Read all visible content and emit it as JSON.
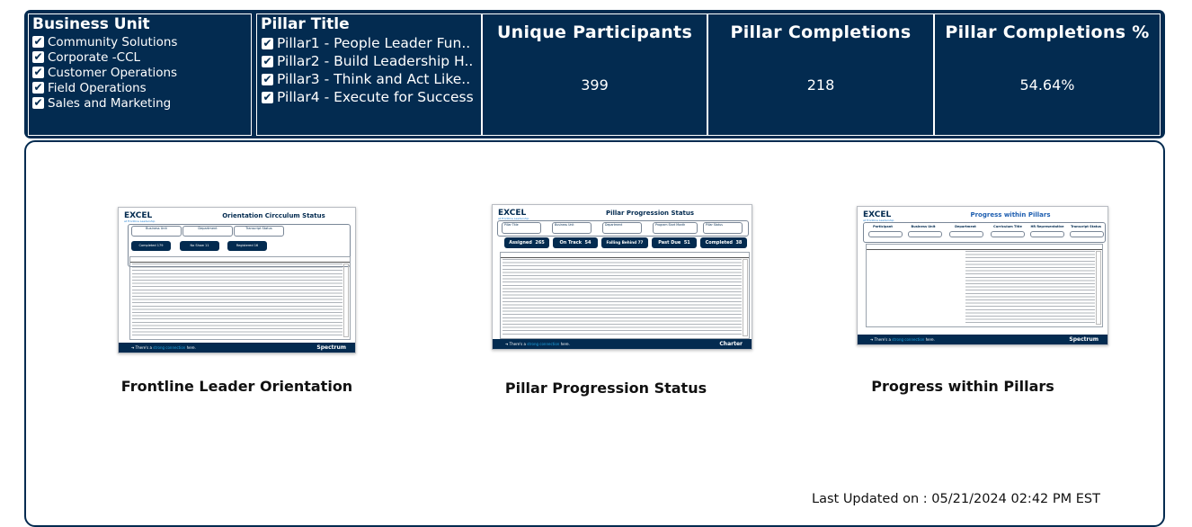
{
  "slicers": {
    "business_unit": {
      "title": "Business Unit",
      "items": [
        "Community Solutions",
        "Corporate -CCL",
        "Customer Operations",
        "Field Operations",
        "Sales and Marketing"
      ]
    },
    "pillar_title": {
      "title": "Pillar Title",
      "items": [
        "Pillar1 - People Leader Fun..",
        "Pillar2 - Build Leadership H..",
        "Pillar3 - Think and Act Like..",
        "Pillar4 - Execute for Success"
      ]
    },
    "check_glyph": "✔"
  },
  "kpis": [
    {
      "title": "Unique Participants",
      "value": "399"
    },
    {
      "title": "Pillar Completions",
      "value": "218"
    },
    {
      "title": "Pillar Completions %",
      "value": "54.64%"
    }
  ],
  "cards": [
    {
      "label": "Frontline Leader Orientation",
      "thumb": {
        "logo": "EXCEL",
        "logo_sub": "at Frontline Leadership",
        "title": "Orientation Circculum Status",
        "filters": [
          "Business Unit",
          "Department",
          "Transcript Status"
        ],
        "stats": [
          {
            "label": "Completed",
            "value": "179"
          },
          {
            "label": "No Show",
            "value": "11"
          },
          {
            "label": "Registered",
            "value": "16"
          }
        ],
        "footer_pre": "There's a",
        "footer_bold": "strong connection",
        "footer_post": "here.",
        "brand": "Spectrum"
      }
    },
    {
      "label": "Pillar Progression Status",
      "thumb": {
        "logo": "EXCEL",
        "logo_sub": "at Frontline Leadership",
        "title": "Pillar Progression Status",
        "filters": [
          "Pillar Title",
          "Business Unit",
          "Department",
          "Program Start Month",
          "Pillar Status"
        ],
        "stats": [
          {
            "label": "Assigned",
            "value": "265"
          },
          {
            "label": "On Track",
            "value": "54"
          },
          {
            "label": "Falling Behind",
            "value": "77"
          },
          {
            "label": "Past Due",
            "value": "51"
          },
          {
            "label": "Completed",
            "value": "38"
          }
        ],
        "footer_pre": "There's a",
        "footer_bold": "strong connection",
        "footer_post": "here.",
        "brand": "Charter"
      }
    },
    {
      "label": "Progress within Pillars",
      "thumb": {
        "logo": "EXCEL",
        "logo_sub": "at Frontline Leadership",
        "title": "Progress within Pillars",
        "filters": [
          "Participant",
          "Business Unit",
          "Department",
          "Curriculum Title",
          "HR Representative",
          "Transcript Status"
        ],
        "footer_pre": "There's a",
        "footer_bold": "strong connection",
        "footer_post": "here.",
        "brand": "Spectrum"
      }
    }
  ],
  "last_updated": "Last Updated on : 05/21/2024 02:42 PM EST",
  "colors": {
    "navy": "#032b50",
    "accent": "#1fa3e0"
  }
}
